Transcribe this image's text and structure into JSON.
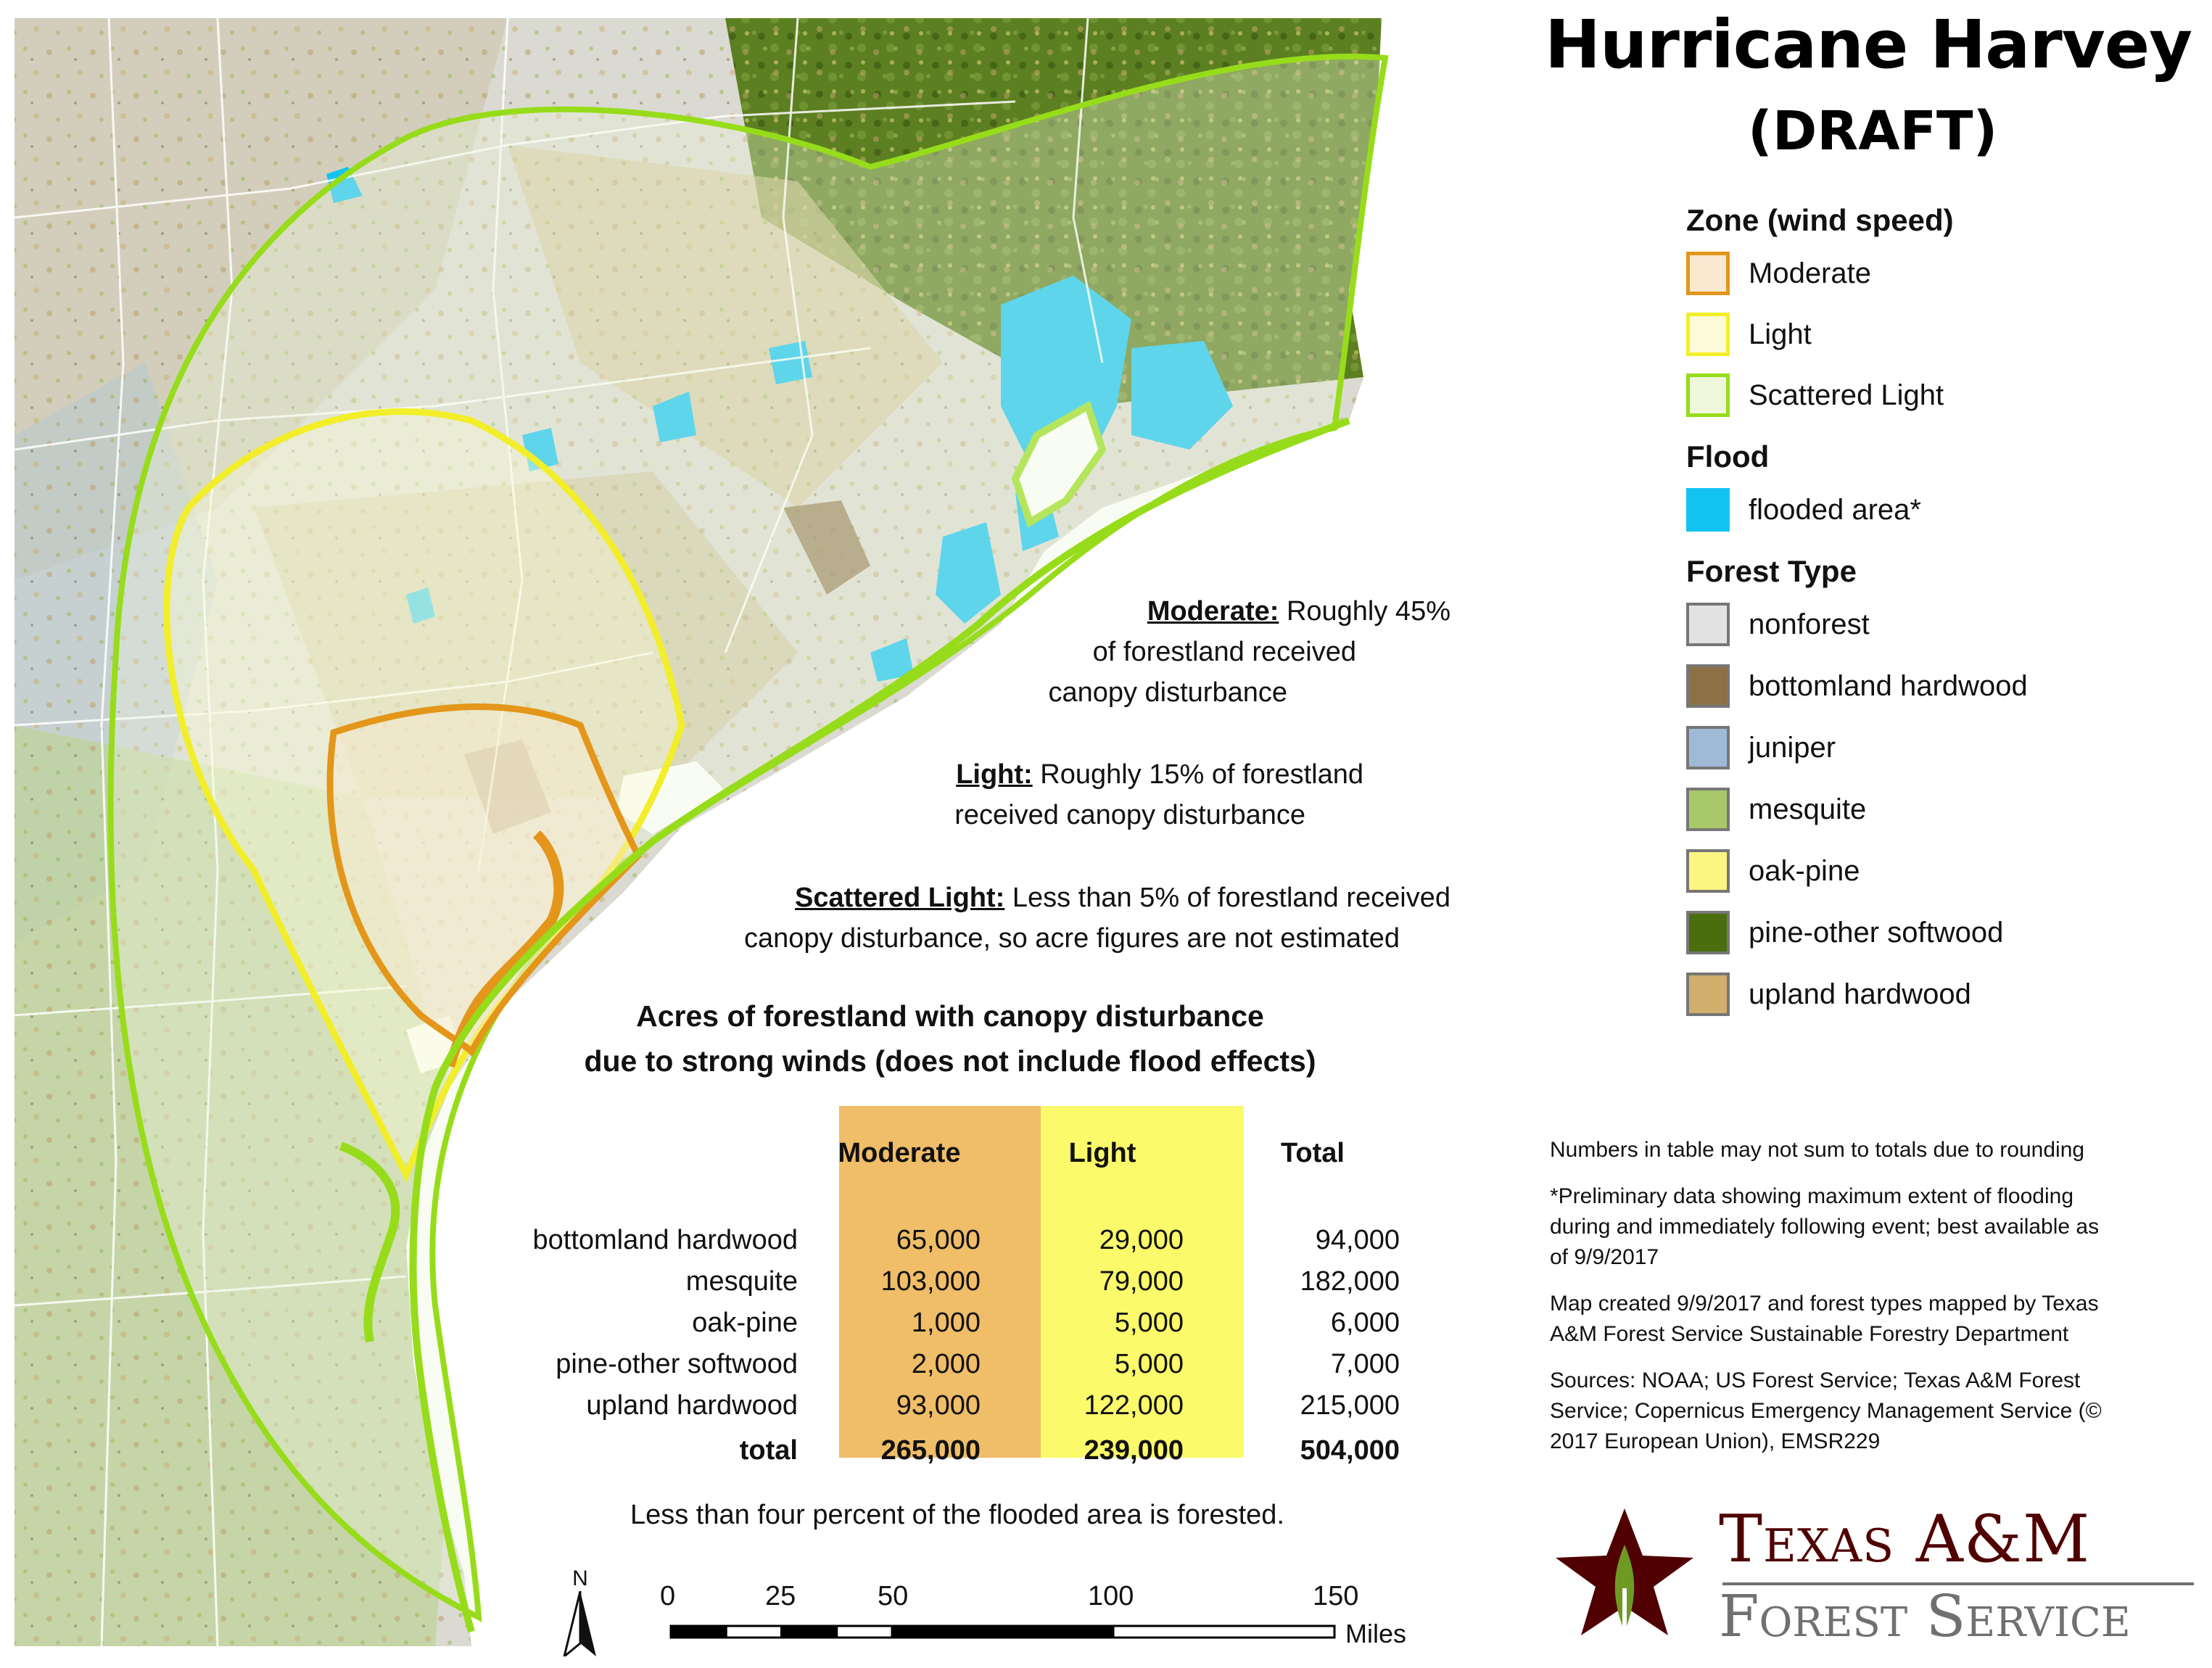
{
  "title": "Hurricane Harvey",
  "subtitle": "(DRAFT)",
  "legend": {
    "zone_heading": "Zone (wind speed)",
    "zones": [
      {
        "label": "Moderate",
        "fill": "#f8e9d0",
        "stroke": "#e3961a"
      },
      {
        "label": "Light",
        "fill": "#fdfbd8",
        "stroke": "#f2ee2a"
      },
      {
        "label": "Scattered Light",
        "fill": "#eef6dc",
        "stroke": "#97dc1a"
      }
    ],
    "flood_heading": "Flood",
    "flood": [
      {
        "label": "flooded area*",
        "fill": "#12c3f2"
      }
    ],
    "forest_heading": "Forest Type",
    "forest_types": [
      {
        "label": "nonforest",
        "fill": "#e2e2e2"
      },
      {
        "label": "bottomland hardwood",
        "fill": "#8c7145"
      },
      {
        "label": "juniper",
        "fill": "#9fbad6"
      },
      {
        "label": "mesquite",
        "fill": "#a9c86a"
      },
      {
        "label": "oak-pine",
        "fill": "#fbf681"
      },
      {
        "label": "pine-other softwood",
        "fill": "#4a6e0d"
      },
      {
        "label": "upland hardwood",
        "fill": "#d1ae6c"
      }
    ]
  },
  "notes": {
    "rounding": "Numbers in table may not sum to totals due to rounding",
    "flood_1": "*Preliminary data showing maximum extent of flooding",
    "flood_2": "during and immediately following event; best available as",
    "flood_3": "of 9/9/2017",
    "created_1": "Map created 9/9/2017 and forest types mapped by Texas",
    "created_2": "A&M Forest Service Sustainable Forestry Department",
    "sources_1": "Sources:  NOAA; US Forest Service; Texas A&M Forest",
    "sources_2": "Service; Copernicus Emergency Management Service (©",
    "sources_3": "2017 European Union), EMSR229"
  },
  "annotations": {
    "moderate_label": "Moderate:",
    "moderate_1": "Roughly 45%",
    "moderate_2": "of forestland received",
    "moderate_3": "canopy disturbance",
    "light_label": "Light:",
    "light_1": "Roughly 15% of forestland",
    "light_2": "received canopy disturbance",
    "scattered_label": "Scattered Light:",
    "scattered_1": "Less than 5% of forestland received",
    "scattered_2": "canopy disturbance, so acre figures are not estimated"
  },
  "table": {
    "heading_1": "Acres of forestland with canopy disturbance",
    "heading_2": "due to strong winds (does not include flood effects)",
    "columns": [
      "Moderate",
      "Light",
      "Total"
    ],
    "moderate_color": "#f0bd68",
    "light_color": "#fafa6a",
    "rows": [
      {
        "type": "bottomland hardwood",
        "moderate": "65,000",
        "light": "29,000",
        "total": "94,000"
      },
      {
        "type": "mesquite",
        "moderate": "103,000",
        "light": "79,000",
        "total": "182,000"
      },
      {
        "type": "oak-pine",
        "moderate": "1,000",
        "light": "5,000",
        "total": "6,000"
      },
      {
        "type": "pine-other softwood",
        "moderate": "2,000",
        "light": "5,000",
        "total": "7,000"
      },
      {
        "type": "upland hardwood",
        "moderate": "93,000",
        "light": "122,000",
        "total": "215,000"
      }
    ],
    "total_row": {
      "type": "total",
      "moderate": "265,000",
      "light": "239,000",
      "total": "504,000"
    }
  },
  "footnote": "Less than four percent of the flooded area is forested.",
  "scale": {
    "north": "N",
    "ticks": [
      "0",
      "25",
      "50",
      "100",
      "150"
    ],
    "tick_values": [
      0,
      25,
      50,
      100,
      150
    ],
    "unit": "Miles"
  },
  "logo": {
    "line_1": "Texas A&M",
    "line_2": "Forest Service",
    "maroon": "#500000",
    "gray": "#707070"
  }
}
